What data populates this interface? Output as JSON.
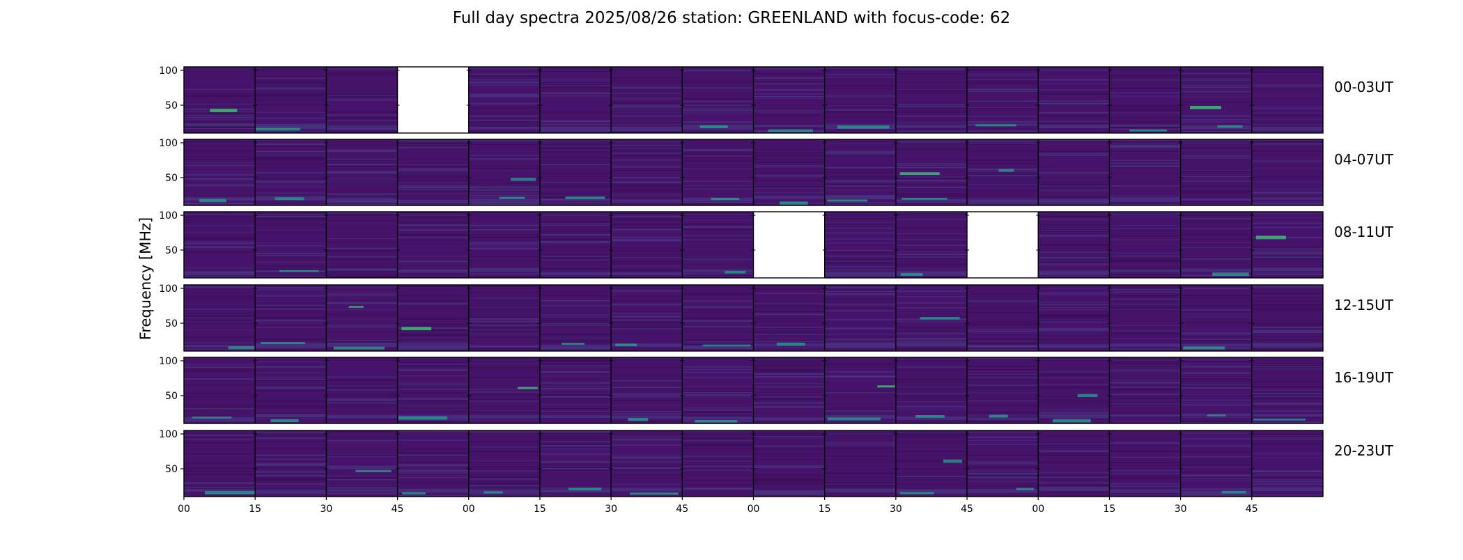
{
  "chart_data": {
    "type": "heatmap",
    "title": "Full day spectra 2025/08/26 station: GREENLAND with focus-code: 62",
    "ylabel": "Frequency [MHz]",
    "ylim": [
      10,
      105
    ],
    "yticks": [
      50,
      100
    ],
    "xticks": [
      "00",
      "15",
      "30",
      "45",
      "00",
      "15",
      "30",
      "45",
      "00",
      "15",
      "30",
      "45",
      "00",
      "15",
      "30",
      "45"
    ],
    "rows": [
      {
        "label": "00-03UT",
        "missing": [
          3
        ]
      },
      {
        "label": "04-07UT",
        "missing": []
      },
      {
        "label": "08-11UT",
        "missing": [
          8,
          11
        ]
      },
      {
        "label": "12-15UT",
        "missing": []
      },
      {
        "label": "16-19UT",
        "missing": []
      },
      {
        "label": "20-23UT",
        "missing": []
      }
    ],
    "panels_per_row": 16,
    "colors": {
      "background": "#46136a",
      "band_dark": "#3b0f57",
      "band_light": "#47337f",
      "band_teal": "#2b8f8a",
      "band_bright": "#3dbc73"
    }
  }
}
